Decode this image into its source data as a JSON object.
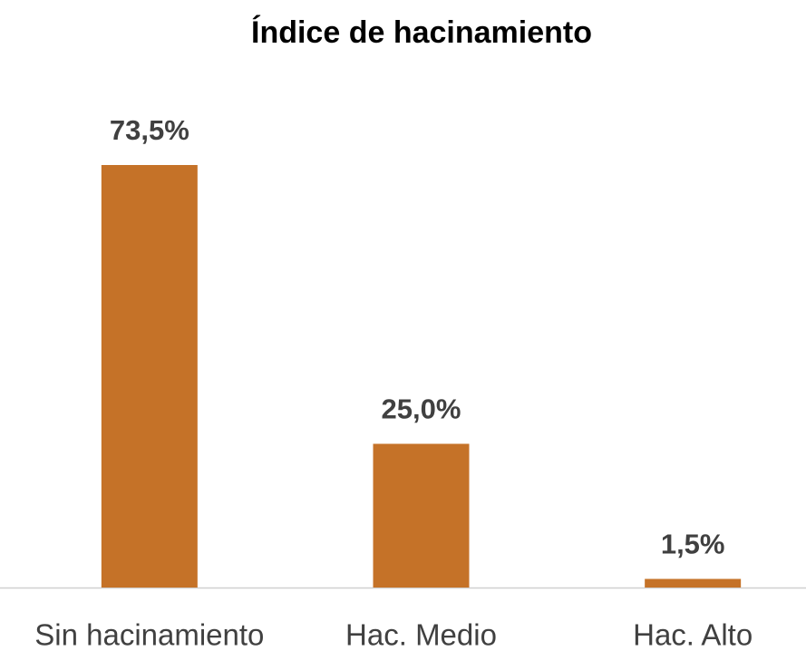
{
  "chart_data": {
    "type": "bar",
    "title": "Índice de hacinamiento",
    "categories": [
      "Sin hacinamiento",
      "Hac. Medio",
      "Hac. Alto"
    ],
    "values": [
      73.5,
      25.0,
      1.5
    ],
    "value_labels": [
      "73,5%",
      "25,0%",
      "1,5%"
    ],
    "color": "#c57228"
  }
}
